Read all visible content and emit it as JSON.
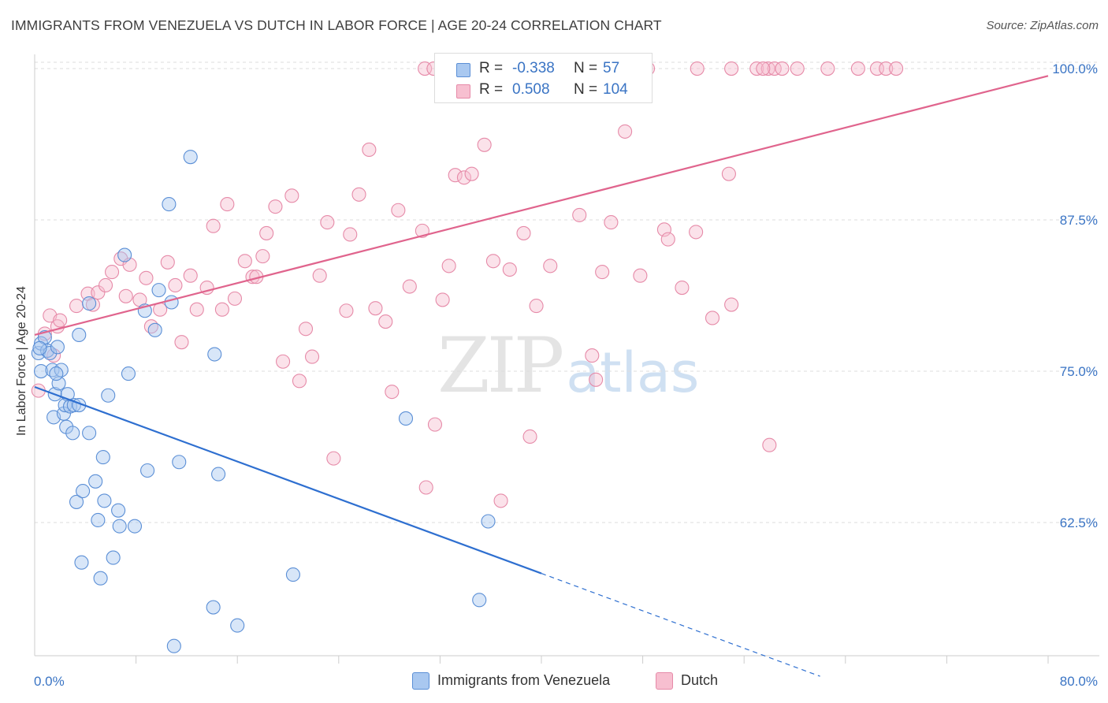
{
  "title": "IMMIGRANTS FROM VENEZUELA VS DUTCH IN LABOR FORCE | AGE 20-24 CORRELATION CHART",
  "source": "Source: ZipAtlas.com",
  "watermark": {
    "zip": "ZIP",
    "atlas": "atlas"
  },
  "legend": {
    "series1": {
      "r_label": "R =",
      "r_value": "-0.338",
      "n_label": "N =",
      "n_value": "57",
      "name": "Immigrants from Venezuela"
    },
    "series2": {
      "r_label": "R =",
      "r_value": "0.508",
      "n_label": "N =",
      "n_value": "104",
      "name": "Dutch"
    }
  },
  "chart_data": {
    "type": "scatter",
    "title": "IMMIGRANTS FROM VENEZUELA VS DUTCH IN LABOR FORCE | AGE 20-24 CORRELATION CHART",
    "xlabel": "",
    "ylabel": "In Labor Force | Age 20-24",
    "xlim": [
      0,
      80
    ],
    "ylim": [
      51.5,
      101.5
    ],
    "x_tick_labels": [
      "0.0%",
      "80.0%"
    ],
    "y_ticks": [
      62.5,
      75.0,
      87.5,
      100.0
    ],
    "y_tick_labels": [
      "62.5%",
      "75.0%",
      "87.5%",
      "100.0%"
    ],
    "grid": true,
    "legend_position": "top-center",
    "colors": {
      "venezuela_fill": "#a9c8f0",
      "venezuela_stroke": "#5b8fd6",
      "venezuela_line": "#2e6fd0",
      "dutch_fill": "#f7bfd0",
      "dutch_stroke": "#e68aa8",
      "dutch_line": "#e0648d",
      "tick_label": "#3a74c4",
      "grid": "#dddddd"
    },
    "series": [
      {
        "name": "Immigrants from Venezuela",
        "trend": {
          "x": [
            0,
            40
          ],
          "y": [
            73.7,
            58.3
          ],
          "dashed_to": [
            62,
            49.8
          ]
        },
        "points": [
          [
            0.3,
            76.5
          ],
          [
            0.5,
            77.3
          ],
          [
            0.5,
            75.0
          ],
          [
            0.8,
            77.8
          ],
          [
            1.0,
            76.7
          ],
          [
            1.2,
            76.5
          ],
          [
            1.4,
            75.1
          ],
          [
            1.5,
            71.2
          ],
          [
            1.6,
            73.1
          ],
          [
            1.8,
            77.0
          ],
          [
            1.9,
            74.0
          ],
          [
            2.1,
            75.1
          ],
          [
            2.3,
            71.5
          ],
          [
            2.4,
            72.2
          ],
          [
            2.5,
            70.4
          ],
          [
            2.6,
            73.1
          ],
          [
            2.8,
            72.1
          ],
          [
            3.0,
            69.9
          ],
          [
            3.1,
            72.2
          ],
          [
            3.3,
            64.2
          ],
          [
            3.5,
            72.2
          ],
          [
            3.5,
            78.0
          ],
          [
            3.7,
            59.2
          ],
          [
            3.8,
            65.1
          ],
          [
            4.3,
            80.6
          ],
          [
            4.3,
            69.9
          ],
          [
            4.8,
            65.9
          ],
          [
            5.0,
            62.7
          ],
          [
            5.2,
            57.9
          ],
          [
            5.4,
            67.9
          ],
          [
            5.5,
            64.3
          ],
          [
            5.8,
            73.0
          ],
          [
            6.2,
            59.6
          ],
          [
            6.6,
            63.5
          ],
          [
            6.7,
            62.2
          ],
          [
            7.1,
            84.6
          ],
          [
            7.4,
            74.8
          ],
          [
            7.9,
            62.2
          ],
          [
            8.7,
            80.0
          ],
          [
            8.9,
            66.8
          ],
          [
            9.5,
            78.4
          ],
          [
            9.8,
            81.7
          ],
          [
            10.6,
            88.8
          ],
          [
            10.8,
            80.7
          ],
          [
            11.0,
            52.3
          ],
          [
            11.4,
            67.5
          ],
          [
            12.3,
            92.7
          ],
          [
            14.1,
            55.5
          ],
          [
            14.2,
            76.4
          ],
          [
            14.5,
            66.5
          ],
          [
            16.0,
            54.0
          ],
          [
            20.4,
            58.2
          ],
          [
            29.3,
            71.1
          ],
          [
            35.1,
            56.1
          ],
          [
            35.8,
            62.6
          ],
          [
            0.4,
            76.9
          ],
          [
            1.7,
            74.8
          ]
        ]
      },
      {
        "name": "Dutch",
        "trend": {
          "x": [
            0,
            80
          ],
          "y": [
            78.0,
            99.4
          ]
        },
        "points": [
          [
            0.3,
            73.4
          ],
          [
            0.8,
            78.1
          ],
          [
            1.2,
            79.6
          ],
          [
            1.5,
            76.3
          ],
          [
            1.8,
            78.7
          ],
          [
            2.0,
            79.2
          ],
          [
            3.3,
            80.4
          ],
          [
            4.2,
            81.4
          ],
          [
            4.6,
            80.5
          ],
          [
            5.0,
            81.5
          ],
          [
            5.6,
            82.1
          ],
          [
            6.1,
            83.2
          ],
          [
            6.8,
            84.3
          ],
          [
            7.2,
            81.2
          ],
          [
            7.5,
            83.8
          ],
          [
            8.3,
            80.9
          ],
          [
            8.8,
            82.7
          ],
          [
            9.2,
            78.7
          ],
          [
            9.9,
            80.1
          ],
          [
            10.5,
            84.0
          ],
          [
            11.1,
            82.1
          ],
          [
            11.6,
            77.4
          ],
          [
            12.3,
            82.9
          ],
          [
            12.8,
            80.1
          ],
          [
            13.6,
            81.9
          ],
          [
            14.1,
            87.0
          ],
          [
            14.8,
            80.1
          ],
          [
            15.2,
            88.8
          ],
          [
            15.8,
            81.0
          ],
          [
            16.6,
            84.1
          ],
          [
            17.2,
            82.8
          ],
          [
            17.5,
            82.8
          ],
          [
            18.0,
            84.5
          ],
          [
            18.3,
            86.4
          ],
          [
            19.0,
            88.6
          ],
          [
            19.6,
            75.8
          ],
          [
            20.3,
            89.5
          ],
          [
            20.9,
            74.2
          ],
          [
            21.4,
            78.5
          ],
          [
            21.9,
            76.2
          ],
          [
            22.5,
            82.9
          ],
          [
            23.1,
            87.3
          ],
          [
            23.6,
            67.8
          ],
          [
            24.6,
            80.0
          ],
          [
            24.9,
            86.3
          ],
          [
            25.6,
            89.6
          ],
          [
            26.4,
            93.3
          ],
          [
            26.9,
            80.2
          ],
          [
            27.7,
            79.1
          ],
          [
            28.2,
            73.3
          ],
          [
            28.7,
            88.3
          ],
          [
            29.6,
            82.0
          ],
          [
            30.6,
            86.6
          ],
          [
            30.9,
            65.4
          ],
          [
            31.6,
            70.6
          ],
          [
            32.2,
            80.9
          ],
          [
            32.7,
            83.7
          ],
          [
            33.2,
            91.2
          ],
          [
            33.9,
            91.0
          ],
          [
            34.5,
            91.3
          ],
          [
            35.5,
            93.7
          ],
          [
            36.2,
            84.1
          ],
          [
            36.8,
            64.3
          ],
          [
            37.5,
            83.4
          ],
          [
            38.6,
            86.4
          ],
          [
            39.1,
            69.6
          ],
          [
            39.6,
            80.4
          ],
          [
            40.7,
            83.7
          ],
          [
            43.0,
            87.9
          ],
          [
            44.0,
            76.3
          ],
          [
            44.3,
            74.3
          ],
          [
            44.8,
            83.2
          ],
          [
            45.5,
            87.3
          ],
          [
            46.6,
            94.8
          ],
          [
            47.8,
            82.9
          ],
          [
            49.7,
            86.7
          ],
          [
            50.0,
            85.9
          ],
          [
            51.1,
            81.9
          ],
          [
            52.2,
            86.5
          ],
          [
            53.5,
            79.4
          ],
          [
            54.8,
            91.3
          ],
          [
            55.0,
            80.5
          ],
          [
            58.0,
            68.9
          ],
          [
            30.8,
            100.0
          ],
          [
            31.5,
            100.0
          ],
          [
            35.2,
            100.0
          ],
          [
            40.0,
            100.0
          ],
          [
            42.8,
            100.0
          ],
          [
            44.5,
            100.0
          ],
          [
            46.5,
            100.0
          ],
          [
            48.4,
            100.0
          ],
          [
            52.3,
            100.0
          ],
          [
            55.0,
            100.0
          ],
          [
            57.0,
            100.0
          ],
          [
            57.9,
            100.0
          ],
          [
            58.4,
            100.0
          ],
          [
            59.0,
            100.0
          ],
          [
            60.2,
            100.0
          ],
          [
            62.6,
            100.0
          ],
          [
            65.0,
            100.0
          ],
          [
            66.5,
            100.0
          ],
          [
            67.2,
            100.0
          ],
          [
            68.0,
            100.0
          ],
          [
            57.5,
            100.0
          ]
        ]
      }
    ]
  }
}
